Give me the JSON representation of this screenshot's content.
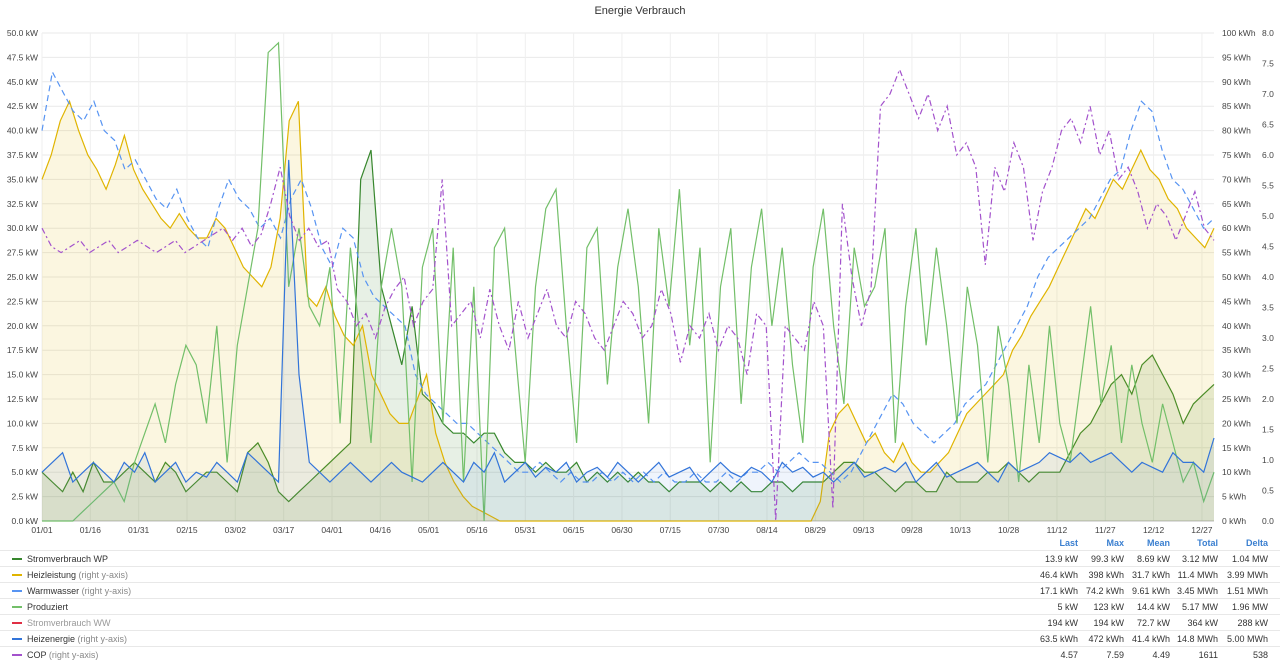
{
  "chart_data": {
    "type": "area",
    "title": "Energie Verbrauch",
    "x_ticks": [
      "01/01",
      "01/16",
      "01/31",
      "02/15",
      "03/02",
      "03/17",
      "04/01",
      "04/16",
      "05/01",
      "05/16",
      "05/31",
      "06/15",
      "06/30",
      "07/15",
      "07/30",
      "08/14",
      "08/29",
      "09/13",
      "09/28",
      "10/13",
      "10/28",
      "11/12",
      "11/27",
      "12/12",
      "12/27"
    ],
    "y_left": {
      "ticks": [
        "0.0 kW",
        "2.5 kW",
        "5.0 kW",
        "7.5 kW",
        "10.0 kW",
        "12.5 kW",
        "15.0 kW",
        "17.5 kW",
        "20.0 kW",
        "22.5 kW",
        "25.0 kW",
        "27.5 kW",
        "30.0 kW",
        "32.5 kW",
        "35.0 kW",
        "37.5 kW",
        "40.0 kW",
        "42.5 kW",
        "45.0 kW",
        "47.5 kW",
        "50.0 kW"
      ],
      "range": [
        0,
        50
      ]
    },
    "y_right_energy": {
      "ticks": [
        "0 kWh",
        "5 kWh",
        "10 kWh",
        "15 kWh",
        "20 kWh",
        "25 kWh",
        "30 kWh",
        "35 kWh",
        "40 kWh",
        "45 kWh",
        "50 kWh",
        "55 kWh",
        "60 kWh",
        "65 kWh",
        "70 kWh",
        "75 kWh",
        "80 kWh",
        "85 kWh",
        "90 kWh",
        "95 kWh",
        "100 kWh"
      ],
      "range": [
        0,
        100
      ]
    },
    "y_right_cop": {
      "ticks": [
        "0.0",
        "0.5",
        "1.0",
        "1.5",
        "2.0",
        "2.5",
        "3.0",
        "3.5",
        "4.0",
        "4.5",
        "5.0",
        "5.5",
        "6.0",
        "6.5",
        "7.0",
        "7.5",
        "8.0"
      ],
      "range": [
        0,
        8
      ]
    },
    "grid": true,
    "legend_position": "bottom",
    "series": [
      {
        "name": "Stromverbrauch WP",
        "axis": "left",
        "color": "#37872d",
        "style": "solid-fill",
        "values": [
          5,
          4,
          3,
          5,
          3,
          6,
          4,
          4,
          5,
          6,
          5,
          4,
          6,
          5,
          3,
          4,
          5,
          5,
          4,
          3,
          7,
          8,
          6,
          3,
          2,
          3,
          4,
          5,
          6,
          7,
          8,
          35,
          38,
          24,
          20,
          16,
          22,
          13,
          12,
          10,
          9,
          9,
          8,
          9,
          9,
          7,
          6,
          6,
          5,
          6,
          5,
          5,
          6,
          4,
          5,
          4,
          5,
          4,
          5,
          4,
          4,
          3,
          4,
          4,
          4,
          3,
          4,
          3,
          4,
          3,
          3,
          4,
          4,
          3,
          4,
          4,
          4,
          5,
          6,
          6,
          5,
          5,
          4,
          3,
          4,
          4,
          3,
          3,
          5,
          4,
          4,
          4,
          5,
          5,
          6,
          5,
          4,
          5,
          5,
          5,
          7,
          9,
          10,
          12,
          14,
          15,
          13,
          16,
          17,
          15,
          13,
          10,
          12,
          13,
          14
        ]
      },
      {
        "name": "Heizleistung",
        "axis": "right-energy",
        "color": "#e0b400",
        "style": "solid-fill",
        "values": [
          70,
          75,
          82,
          86,
          80,
          75,
          72,
          68,
          73,
          79,
          72,
          68,
          65,
          62,
          60,
          63,
          60,
          58,
          58,
          62,
          60,
          56,
          52,
          50,
          48,
          52,
          62,
          82,
          86,
          46,
          44,
          48,
          42,
          38,
          36,
          40,
          30,
          26,
          22,
          20,
          20,
          25,
          30,
          18,
          12,
          8,
          5,
          3,
          2,
          1,
          0,
          0,
          0,
          0,
          0,
          0,
          0,
          0,
          0,
          0,
          0,
          0,
          0,
          0,
          0,
          0,
          0,
          0,
          0,
          0,
          0,
          0,
          0,
          0,
          0,
          0,
          0,
          0,
          0,
          0,
          0,
          0,
          0,
          0,
          0,
          4,
          18,
          22,
          24,
          20,
          16,
          18,
          14,
          12,
          16,
          12,
          10,
          10,
          12,
          14,
          18,
          22,
          24,
          26,
          28,
          30,
          35,
          38,
          42,
          45,
          48,
          52,
          56,
          60,
          64,
          62,
          66,
          70,
          68,
          72,
          76,
          72,
          70,
          66,
          64,
          60,
          58,
          56,
          60
        ]
      },
      {
        "name": "Warmwasser",
        "axis": "right-energy",
        "color": "#5794f2",
        "style": "dashed",
        "values": [
          80,
          92,
          88,
          84,
          82,
          86,
          80,
          78,
          72,
          74,
          70,
          66,
          64,
          68,
          62,
          58,
          56,
          64,
          70,
          66,
          64,
          60,
          62,
          58,
          66,
          70,
          64,
          56,
          52,
          60,
          58,
          50,
          46,
          44,
          42,
          40,
          30,
          26,
          24,
          22,
          20,
          20,
          18,
          16,
          14,
          12,
          10,
          10,
          12,
          10,
          8,
          10,
          8,
          8,
          10,
          8,
          10,
          8,
          10,
          8,
          10,
          8,
          8,
          10,
          8,
          8,
          10,
          8,
          10,
          10,
          12,
          10,
          12,
          14,
          12,
          12,
          10,
          8,
          10,
          14,
          18,
          22,
          26,
          24,
          20,
          18,
          16,
          18,
          20,
          24,
          26,
          28,
          32,
          36,
          40,
          44,
          50,
          54,
          56,
          58,
          60,
          62,
          66,
          70,
          72,
          80,
          86,
          84,
          76,
          70,
          68,
          64,
          60,
          62
        ]
      },
      {
        "name": "Produziert",
        "axis": "left",
        "color": "#73bf69",
        "style": "solid",
        "values": [
          0,
          0,
          0,
          0,
          1,
          2,
          3,
          4,
          2,
          6,
          9,
          12,
          8,
          14,
          18,
          16,
          10,
          20,
          6,
          18,
          24,
          30,
          48,
          49,
          24,
          30,
          22,
          20,
          26,
          10,
          28,
          18,
          8,
          24,
          30,
          24,
          4,
          26,
          30,
          10,
          28,
          4,
          24,
          0,
          28,
          30,
          18,
          6,
          24,
          32,
          34,
          20,
          8,
          28,
          30,
          14,
          26,
          32,
          24,
          10,
          30,
          22,
          34,
          18,
          28,
          6,
          24,
          30,
          12,
          26,
          32,
          20,
          28,
          16,
          8,
          26,
          32,
          20,
          12,
          28,
          22,
          24,
          30,
          8,
          22,
          30,
          18,
          28,
          20,
          10,
          24,
          18,
          6,
          20,
          14,
          4,
          16,
          8,
          20,
          10,
          6,
          14,
          22,
          12,
          18,
          8,
          16,
          10,
          6,
          12,
          8,
          4,
          6,
          2,
          5
        ]
      },
      {
        "name": "Stromverbrauch WW",
        "axis": "left",
        "color": "#e02f44",
        "style": "solid",
        "hidden": true,
        "values": []
      },
      {
        "name": "Heizenergie",
        "axis": "right-energy",
        "color": "#3274d9",
        "style": "solid",
        "values": [
          10,
          12,
          14,
          8,
          10,
          12,
          10,
          8,
          12,
          10,
          14,
          8,
          10,
          12,
          8,
          10,
          9,
          12,
          10,
          8,
          14,
          12,
          10,
          8,
          74,
          30,
          12,
          10,
          8,
          10,
          12,
          10,
          8,
          10,
          12,
          10,
          9,
          8,
          10,
          12,
          10,
          8,
          12,
          10,
          14,
          8,
          10,
          12,
          9,
          11,
          10,
          12,
          8,
          10,
          11,
          9,
          12,
          10,
          8,
          10,
          12,
          9,
          10,
          11,
          8,
          10,
          12,
          10,
          9,
          11,
          10,
          8,
          12,
          10,
          11,
          9,
          10,
          8,
          10,
          12,
          9,
          10,
          11,
          10,
          12,
          8,
          10,
          12,
          9,
          10,
          11,
          12,
          10,
          8,
          12,
          10,
          11,
          12,
          14,
          13,
          12,
          14,
          12,
          13,
          14,
          12,
          10,
          12,
          11,
          10,
          14,
          12,
          12,
          10,
          17
        ]
      },
      {
        "name": "COP",
        "axis": "right-cop",
        "color": "#a352cc",
        "style": "dash-dot",
        "values": [
          4.8,
          4.5,
          4.4,
          4.5,
          4.6,
          4.4,
          4.5,
          4.6,
          4.4,
          4.5,
          4.6,
          4.5,
          4.4,
          4.5,
          4.6,
          4.4,
          4.5,
          4.6,
          4.7,
          4.8,
          4.6,
          4.8,
          4.5,
          4.7,
          5.2,
          5.8,
          5.0,
          4.6,
          4.8,
          4.5,
          4.6,
          3.8,
          3.6,
          3.2,
          3.4,
          3.0,
          3.5,
          3.8,
          4.0,
          3.2,
          3.6,
          3.8,
          5.6,
          3.2,
          3.4,
          3.6,
          3.0,
          3.8,
          3.2,
          2.8,
          3.6,
          3.0,
          3.4,
          3.8,
          3.2,
          3.0,
          3.6,
          3.4,
          3.0,
          2.8,
          3.2,
          3.6,
          3.4,
          3.0,
          3.2,
          3.8,
          3.4,
          2.6,
          3.2,
          3.0,
          3.4,
          2.8,
          3.2,
          3.0,
          2.4,
          3.4,
          3.2,
          0.0,
          3.2,
          3.0,
          2.8,
          3.6,
          3.2,
          0.2,
          5.2,
          4.0,
          3.2,
          3.8,
          6.8,
          7.0,
          7.4,
          7.0,
          6.6,
          7.0,
          6.4,
          6.8,
          6.0,
          6.2,
          5.8,
          4.2,
          5.8,
          5.4,
          6.2,
          5.8,
          4.6,
          5.4,
          5.8,
          6.4,
          6.6,
          6.2,
          6.8,
          6.0,
          6.4,
          5.6,
          5.8,
          5.4,
          4.8,
          5.2,
          5.0,
          4.6,
          5.0,
          5.4,
          4.8,
          4.6
        ]
      }
    ]
  },
  "legend": {
    "columns": [
      "Last",
      "Max",
      "Mean",
      "Total",
      "Delta"
    ],
    "rows": [
      {
        "name": "Stromverbrauch WP",
        "axis": "",
        "color": "#37872d",
        "dim": false,
        "values": [
          "13.9 kW",
          "99.3 kW",
          "8.69 kW",
          "3.12 MW",
          "1.04 MW"
        ]
      },
      {
        "name": "Heizleistung",
        "axis": "(right y-axis)",
        "color": "#e0b400",
        "dim": false,
        "values": [
          "46.4 kWh",
          "398 kWh",
          "31.7 kWh",
          "11.4 MWh",
          "3.99 MWh"
        ]
      },
      {
        "name": "Warmwasser",
        "axis": "(right y-axis)",
        "color": "#5794f2",
        "dim": false,
        "values": [
          "17.1 kWh",
          "74.2 kWh",
          "9.61 kWh",
          "3.45 MWh",
          "1.51 MWh"
        ]
      },
      {
        "name": "Produziert",
        "axis": "",
        "color": "#73bf69",
        "dim": false,
        "values": [
          "5 kW",
          "123 kW",
          "14.4 kW",
          "5.17 MW",
          "1.96 MW"
        ]
      },
      {
        "name": "Stromverbrauch WW",
        "axis": "",
        "color": "#e02f44",
        "dim": true,
        "values": [
          "194 kW",
          "194 kW",
          "72.7 kW",
          "364 kW",
          "288 kW"
        ]
      },
      {
        "name": "Heizenergie",
        "axis": "(right y-axis)",
        "color": "#3274d9",
        "dim": false,
        "values": [
          "63.5 kWh",
          "472 kWh",
          "41.4 kWh",
          "14.8 MWh",
          "5.00 MWh"
        ]
      },
      {
        "name": "COP",
        "axis": "(right y-axis)",
        "color": "#a352cc",
        "dim": false,
        "values": [
          "4.57",
          "7.59",
          "4.49",
          "1611",
          "538"
        ]
      }
    ]
  }
}
